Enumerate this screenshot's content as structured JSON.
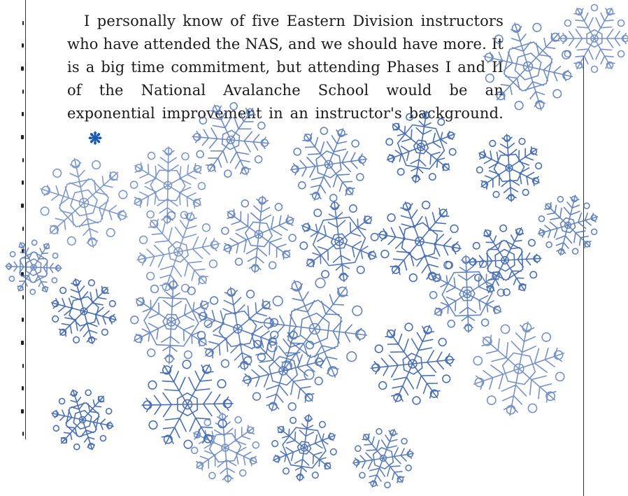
{
  "article": {
    "paragraph": "I personally know of five Eastern Division instructors who have attended the NAS, and we should have more. It is a big time commitment, but attending Phases I and II of the National Avalanche School would be an exponential improvement in an instructor's background.",
    "end_mark": "❋"
  },
  "decoration": {
    "icon": "snowflake-icon",
    "color": "#4a6fb5"
  }
}
